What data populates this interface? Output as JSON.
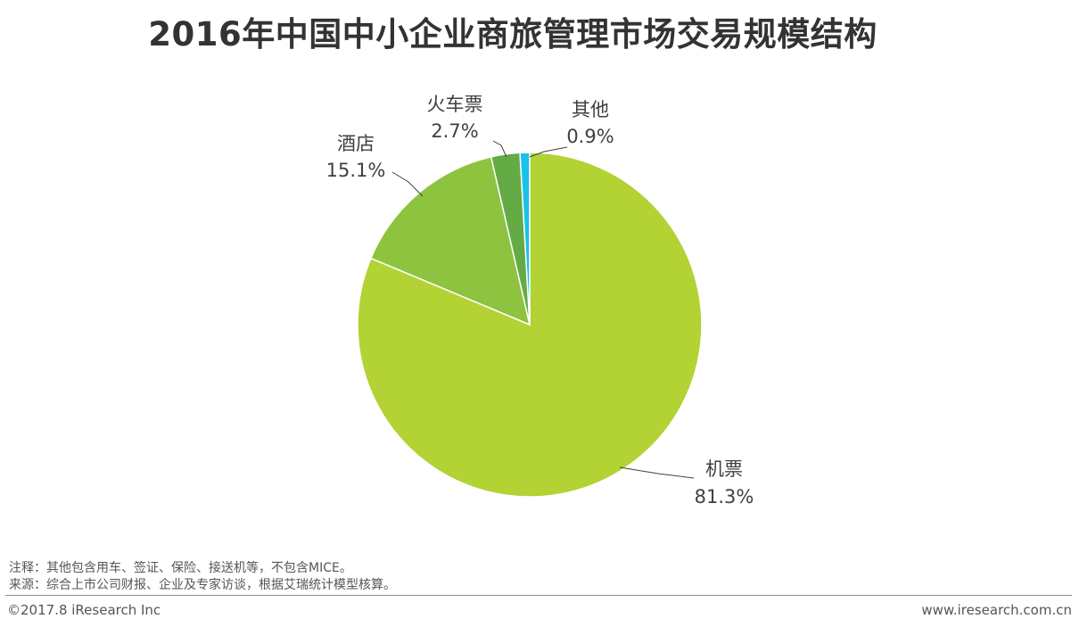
{
  "title": "2016年中国中小企业商旅管理市场交易规模结构",
  "chart_data": {
    "type": "pie",
    "title": "2016年中国中小企业商旅管理市场交易规模结构",
    "slices": [
      {
        "label": "机票",
        "value": 81.3,
        "value_text": "81.3%",
        "color": "#b3d234"
      },
      {
        "label": "酒店",
        "value": 15.1,
        "value_text": "15.1%",
        "color": "#8dc33f"
      },
      {
        "label": "火车票",
        "value": 2.7,
        "value_text": "2.7%",
        "color": "#64ab45"
      },
      {
        "label": "其他",
        "value": 0.9,
        "value_text": "0.9%",
        "color": "#19c3e6"
      }
    ],
    "legend": "none"
  },
  "footnote": {
    "note": "注释：其他包含用车、签证、保险、接送机等，不包含MICE。",
    "source": "来源：综合上市公司财报、企业及专家访谈，根据艾瑞统计模型核算。"
  },
  "footer": {
    "copyright": "©2017.8 iResearch Inc",
    "website": "www.iresearch.com.cn"
  }
}
